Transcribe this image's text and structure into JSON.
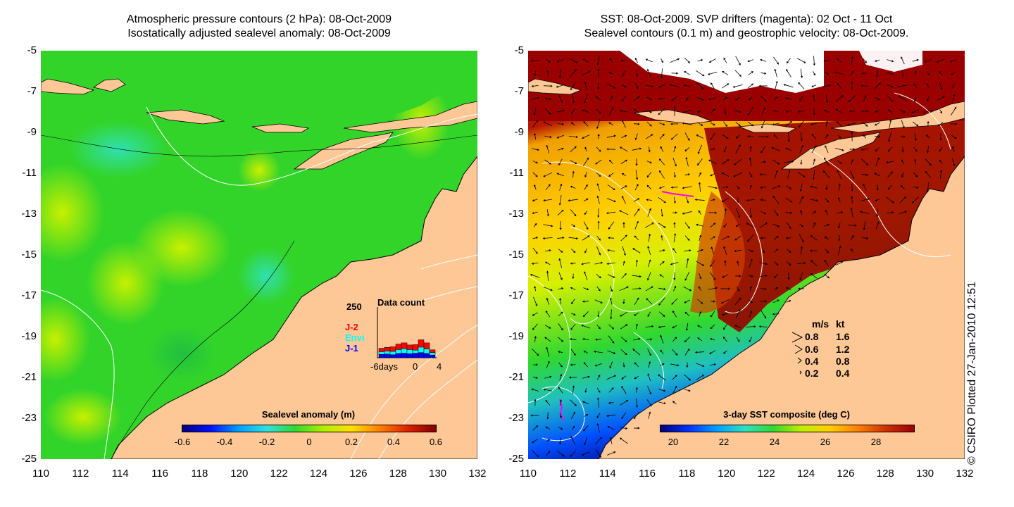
{
  "left_panel": {
    "title_line1": "Atmospheric pressure contours (2 hPa): 08-Oct-2009",
    "title_line2": "Isostatically adjusted sealevel anomaly: 08-Oct-2009",
    "colorbar": {
      "title": "Sealevel anomaly (m)",
      "ticks": [
        "-0.6",
        "-0.4",
        "-0.2",
        "0",
        "0.2",
        "0.4",
        "0.6"
      ],
      "range": [
        -0.6,
        0.6
      ],
      "colormap": [
        "#00007a",
        "#0010ff",
        "#00a0ff",
        "#30e0e0",
        "#30d830",
        "#b0f000",
        "#ffe000",
        "#ff8000",
        "#e02000",
        "#800000"
      ]
    },
    "data_count_inset": {
      "title": "Data count",
      "ymax_label": "250",
      "xlabel_left": "-6days",
      "xlabel_mid": "0",
      "xlabel_right": "4",
      "legend": [
        {
          "label": "J-2",
          "color": "#ff0000"
        },
        {
          "label": "Envi",
          "color": "#00ffff"
        },
        {
          "label": "J-1",
          "color": "#0000ff"
        }
      ],
      "bars": [
        {
          "j1": 22,
          "envi": 18,
          "j2": 22
        },
        {
          "j1": 24,
          "envi": 20,
          "j2": 24
        },
        {
          "j1": 20,
          "envi": 22,
          "j2": 30
        },
        {
          "j1": 28,
          "envi": 26,
          "j2": 36
        },
        {
          "j1": 30,
          "envi": 30,
          "j2": 38
        },
        {
          "j1": 26,
          "envi": 28,
          "j2": 30
        },
        {
          "j1": 30,
          "envi": 20,
          "j2": 36
        },
        {
          "j1": 34,
          "envi": 36,
          "j2": 48
        },
        {
          "j1": 28,
          "envi": 30,
          "j2": 40
        },
        {
          "j1": 18,
          "envi": 16,
          "j2": 18
        }
      ]
    }
  },
  "right_panel": {
    "title_line1": "SST: 08-Oct-2009. SVP drifters (magenta): 02 Oct - 11 Oct",
    "title_line2": "Sealevel contours (0.1 m) and geostrophic velocity: 08-Oct-2009.",
    "colorbar": {
      "title": "3-day SST composite (deg C)",
      "ticks": [
        "20",
        "22",
        "24",
        "26",
        "28"
      ],
      "range": [
        19.5,
        29.5
      ],
      "colormap": [
        "#00007a",
        "#0030ff",
        "#00a0ff",
        "#30e0c0",
        "#30d830",
        "#c0f000",
        "#ffd000",
        "#ff8000",
        "#d03000",
        "#9a0000"
      ]
    },
    "velocity_legend": {
      "header_ms": "m/s",
      "header_kt": "kt",
      "rows": [
        {
          "ms": "0.8",
          "kt": "1.6"
        },
        {
          "ms": "0.6",
          "kt": "1.2"
        },
        {
          "ms": "0.4",
          "kt": "0.8"
        },
        {
          "ms": "0.2",
          "kt": "0.4"
        }
      ]
    }
  },
  "axes": {
    "y_ticks": [
      "-5",
      "-7",
      "-9",
      "-11",
      "-13",
      "-15",
      "-17",
      "-19",
      "-21",
      "-23",
      "-25"
    ],
    "x_ticks": [
      "110",
      "112",
      "114",
      "116",
      "118",
      "120",
      "122",
      "124",
      "126",
      "128",
      "130",
      "132"
    ]
  },
  "credit": "© CSIRO Plotted 27-Jan-2010 12:51",
  "colors": {
    "land": "#fdc796",
    "ocean_left": "#33d42a",
    "drifter": "#ff00ff",
    "coastline": "#000000",
    "contour": "#ffffff"
  }
}
